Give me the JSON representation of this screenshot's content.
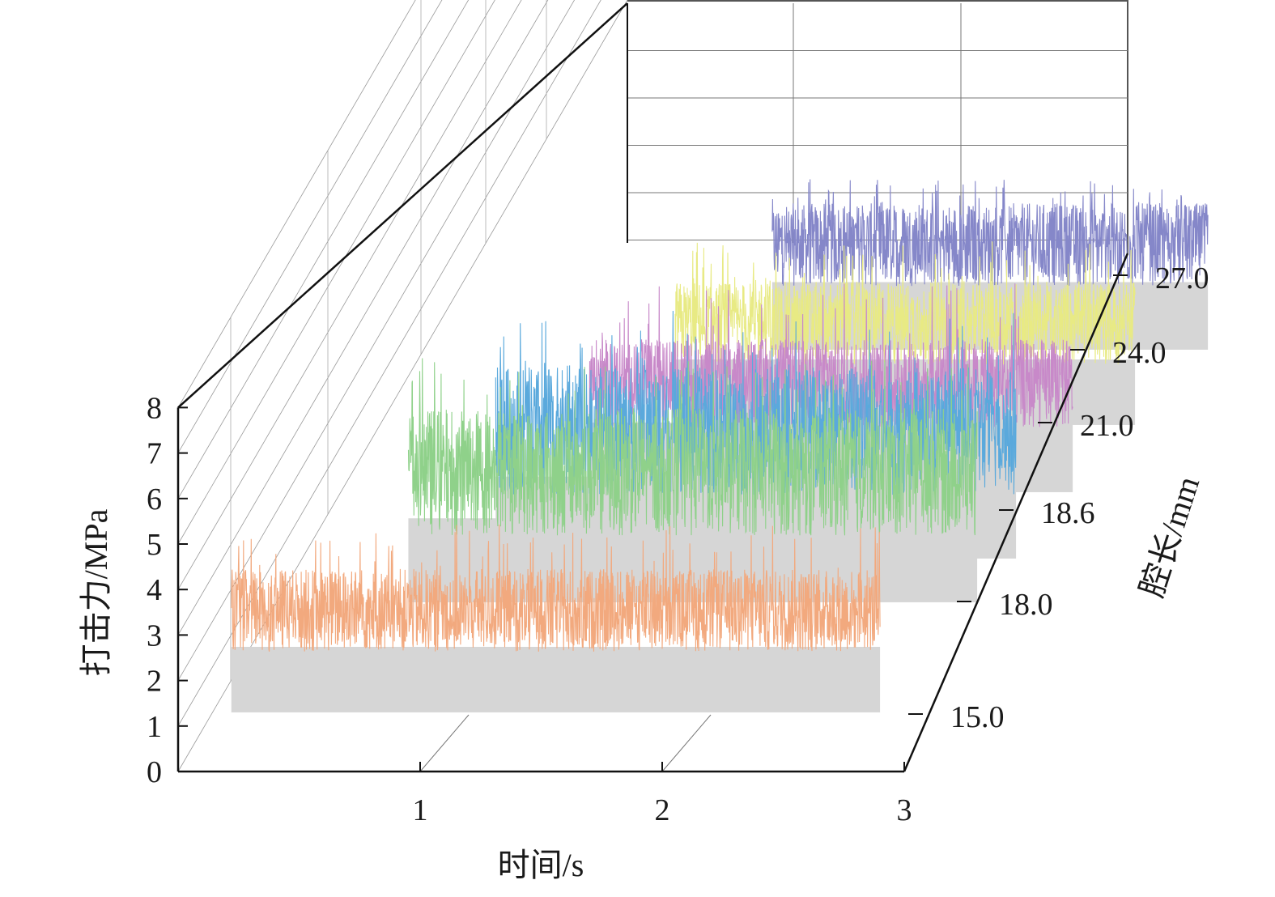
{
  "chart_data": {
    "type": "line",
    "subtype": "3d-waterfall",
    "xlabel": "时间/s",
    "ylabel": "打击力/MPa",
    "zlabel": "腔长/mm",
    "x_ticks": [
      "1",
      "2",
      "3"
    ],
    "y_ticks": [
      "0",
      "1",
      "2",
      "3",
      "4",
      "5",
      "6",
      "7",
      "8"
    ],
    "z_ticks": [
      "15.0",
      "18.0",
      "18.6",
      "21.0",
      "24.0",
      "27.0"
    ],
    "xlim": [
      0,
      3
    ],
    "ylim": [
      0,
      8
    ],
    "grid": true,
    "series": [
      {
        "cavity_length": 15.0,
        "color": "#f2a97e",
        "t_start": 0.22,
        "t_end": 2.9,
        "mean": 3.2,
        "amp_low": 1.3,
        "amp_high": 1.7,
        "peak": 5.9
      },
      {
        "cavity_length": 18.0,
        "color": "#8fd18a",
        "t_start": 0.55,
        "t_end": 2.9,
        "mean": 4.1,
        "amp_low": 2.0,
        "amp_high": 2.8,
        "peak": 7.7
      },
      {
        "cavity_length": 18.6,
        "color": "#5aa9dc",
        "t_start": 0.75,
        "t_end": 2.9,
        "mean": 4.0,
        "amp_low": 2.0,
        "amp_high": 2.8,
        "peak": 7.8
      },
      {
        "cavity_length": 21.0,
        "color": "#c889c9",
        "t_start": 0.9,
        "t_end": 2.9,
        "mean": 3.4,
        "amp_low": 1.4,
        "amp_high": 2.2,
        "peak": 6.6
      },
      {
        "cavity_length": 24.0,
        "color": "#e8ea84",
        "t_start": 1.0,
        "t_end": 2.9,
        "mean": 3.2,
        "amp_low": 1.3,
        "amp_high": 2.0,
        "peak": 5.8
      },
      {
        "cavity_length": 27.0,
        "color": "#8587c9",
        "t_start": 1.1,
        "t_end": 2.9,
        "mean": 3.3,
        "amp_low": 1.3,
        "amp_high": 2.2,
        "peak": 5.4
      }
    ],
    "fill_color": "#d6d6d6"
  }
}
